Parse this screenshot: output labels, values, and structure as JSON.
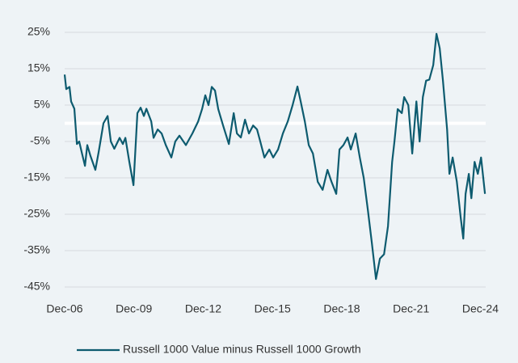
{
  "chart_data": {
    "type": "line",
    "x": [
      2006.92,
      2006.99,
      2007.13,
      2007.2,
      2007.34,
      2007.45,
      2007.55,
      2007.66,
      2007.8,
      2007.9,
      2008.04,
      2008.25,
      2008.39,
      2008.6,
      2008.78,
      2008.92,
      2009.07,
      2009.3,
      2009.44,
      2009.55,
      2009.72,
      2009.9,
      2010.07,
      2010.21,
      2010.35,
      2010.46,
      2010.67,
      2010.77,
      2010.95,
      2011.12,
      2011.3,
      2011.54,
      2011.71,
      2011.89,
      2012.17,
      2012.45,
      2012.7,
      2012.87,
      2013.01,
      2013.15,
      2013.29,
      2013.43,
      2013.57,
      2013.78,
      2014.03,
      2014.24,
      2014.38,
      2014.55,
      2014.73,
      2014.9,
      2015.08,
      2015.25,
      2015.39,
      2015.57,
      2015.78,
      2015.95,
      2016.16,
      2016.37,
      2016.58,
      2016.79,
      2017.0,
      2017.14,
      2017.32,
      2017.49,
      2017.67,
      2017.88,
      2018.09,
      2018.3,
      2018.47,
      2018.68,
      2018.82,
      2018.99,
      2019.17,
      2019.31,
      2019.52,
      2019.7,
      2019.87,
      2020.05,
      2020.22,
      2020.4,
      2020.57,
      2020.75,
      2020.92,
      2021.1,
      2021.2,
      2021.34,
      2021.52,
      2021.62,
      2021.8,
      2021.97,
      2022.15,
      2022.29,
      2022.43,
      2022.57,
      2022.71,
      2022.88,
      2023.02,
      2023.16,
      2023.3,
      2023.48,
      2023.58,
      2023.72,
      2023.9,
      2024.07,
      2024.18,
      2024.28,
      2024.42,
      2024.53,
      2024.67,
      2024.81,
      2024.95,
      2025.12
    ],
    "series": [
      {
        "name": "Russell 1000 Value minus Russell 1000 Growth",
        "color": "#0d5b6f",
        "values": [
          13.4,
          9.4,
          10,
          6,
          4,
          -5.7,
          -5,
          -8,
          -11.7,
          -6,
          -9,
          -12.8,
          -8,
          0,
          2,
          -5,
          -7,
          -4,
          -5.7,
          -4,
          -10.6,
          -17,
          2.8,
          4.3,
          2,
          4,
          0.5,
          -4,
          -1.7,
          -2.8,
          -6,
          -9.4,
          -5,
          -3.4,
          -6,
          -2.8,
          0.5,
          3.9,
          7.7,
          5,
          10,
          9,
          3.9,
          -0.6,
          -5.7,
          2.8,
          -2.8,
          -3.9,
          1,
          -2.8,
          -0.6,
          -1.7,
          -5,
          -9.4,
          -7.2,
          -9.4,
          -7.2,
          -2.8,
          0.5,
          5,
          10.1,
          6,
          0.5,
          -6,
          -8.3,
          -16.1,
          -18.3,
          -12.8,
          -16,
          -19.4,
          -7.2,
          -6,
          -3.9,
          -7.2,
          -2.8,
          -9.4,
          -15,
          -23.9,
          -32.8,
          -42.8,
          -37.2,
          -36,
          -28.3,
          -10.6,
          -5,
          3.9,
          2.8,
          7.2,
          5,
          -8.3,
          6,
          -5,
          7.2,
          11.7,
          12,
          16,
          24.6,
          20.6,
          11.7,
          -1.7,
          -13.9,
          -9.4,
          -16,
          -26,
          -31.7,
          -19.4,
          -13.9,
          -20.6,
          -10.6,
          -13.9,
          -9.4,
          -19.4
        ]
      }
    ],
    "xlim": [
      2006.92,
      2025.15
    ],
    "xticks": [
      {
        "value": 2006.92,
        "label": "Dec-06"
      },
      {
        "value": 2009.92,
        "label": "Dec-09"
      },
      {
        "value": 2012.92,
        "label": "Dec-12"
      },
      {
        "value": 2015.92,
        "label": "Dec-15"
      },
      {
        "value": 2018.92,
        "label": "Dec-18"
      },
      {
        "value": 2021.92,
        "label": "Dec-21"
      },
      {
        "value": 2024.92,
        "label": "Dec-24"
      }
    ],
    "ylim": [
      -47,
      27
    ],
    "yticks": [
      {
        "value": 25,
        "label": "25%"
      },
      {
        "value": 15,
        "label": "15%"
      },
      {
        "value": 5,
        "label": "5%"
      },
      {
        "value": -5,
        "label": "-5%"
      },
      {
        "value": -15,
        "label": "-15%"
      },
      {
        "value": -25,
        "label": "-25%"
      },
      {
        "value": -35,
        "label": "-35%"
      },
      {
        "value": -45,
        "label": "-45%"
      }
    ],
    "reference_line": 0,
    "grid": true,
    "legend": "bottom"
  }
}
